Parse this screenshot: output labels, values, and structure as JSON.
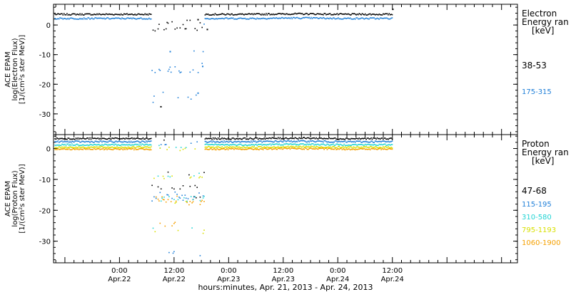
{
  "chart_data": [
    {
      "type": "scatter",
      "ylabel_lines": [
        "ACE EPAM",
        "log(Electron Flux)",
        "[1/(cm²s ster MeV)]"
      ],
      "ylim": [
        -37,
        7
      ],
      "yticks": [
        0,
        -10,
        -20,
        -30
      ],
      "legend_title_lines": [
        "Electron",
        "Energy ran",
        "[keV]"
      ],
      "series": [
        {
          "name": "38-53",
          "color": "#000000",
          "base": 3.6,
          "gap_level": -1.4,
          "gap_scatter": [
            1.0,
            0.5,
            -0.5,
            -2.0
          ],
          "outliers": [
            [
              0.23,
              -27.6
            ],
            [
              0.31,
              1.8
            ],
            [
              0.33,
              -1.5
            ],
            [
              0.73,
              5.3
            ]
          ]
        },
        {
          "name": "175-315",
          "color": "#1f7fd8",
          "base": 2.2,
          "gap_level": -15.5,
          "gap_scatter": [
            -0.1,
            -8.8,
            -13.6,
            -22.9,
            -24.3,
            -25.9,
            -30.8
          ],
          "outliers": [
            [
              0.25,
              -9.0
            ],
            [
              0.32,
              -14.0
            ],
            [
              0.31,
              -23.0
            ]
          ]
        }
      ]
    },
    {
      "type": "scatter",
      "ylabel_lines": [
        "ACE EPAM",
        "log(Proton Flux)",
        "[1/(cm²s ster MeV)]"
      ],
      "ylim": [
        -37,
        4.5
      ],
      "yticks": [
        0,
        -10,
        -20,
        -30
      ],
      "legend_title_lines": [
        "Proton",
        "Energy ran",
        "[keV]"
      ],
      "series": [
        {
          "name": "47-68",
          "color": "#000000",
          "base": 3.2,
          "gap_level": -12.5,
          "gap_scatter": [
            2.5,
            1.0,
            -8.0,
            -13.0,
            -16.0
          ]
        },
        {
          "name": "115-195",
          "color": "#1f7fd8",
          "base": 2.2,
          "gap_level": -15.5,
          "gap_scatter": [
            1.5,
            -14.5,
            -16.5,
            -34.0
          ]
        },
        {
          "name": "310-580",
          "color": "#22d4d4",
          "base": 1.2,
          "gap_level": -16.0,
          "gap_scatter": [
            0.5,
            -8.5,
            -16.5,
            -26.0
          ]
        },
        {
          "name": "795-1193",
          "color": "#d8e000",
          "base": 0.4,
          "gap_level": -9.5,
          "gap_scatter": [
            0.0,
            -0.5,
            -17.0,
            -27.0
          ]
        },
        {
          "name": "1060-1900",
          "color": "#f5a000",
          "base": -0.2,
          "gap_level": -17.0,
          "gap_scatter": [
            -16.0,
            -17.5,
            -24.5,
            -30.5
          ]
        }
      ]
    }
  ],
  "x_axis": {
    "title": "hours:minutes, Apr. 21, 2013 - Apr. 24, 2013",
    "range_hours": [
      -14.5,
      87.5
    ],
    "data_end_hour": 60.0,
    "gap_hours": [
      7.0,
      18.5
    ],
    "ticks": [
      {
        "hour": 0,
        "time": "0:00",
        "date": "Apr.22"
      },
      {
        "hour": 12,
        "time": "12:00",
        "date": "Apr.22"
      },
      {
        "hour": 24,
        "time": "0:00",
        "date": "Apr.23"
      },
      {
        "hour": 36,
        "time": "12:00",
        "date": "Apr.23"
      },
      {
        "hour": 48,
        "time": "0:00",
        "date": "Apr.24"
      },
      {
        "hour": 60,
        "time": "12:00",
        "date": "Apr.24"
      }
    ]
  }
}
